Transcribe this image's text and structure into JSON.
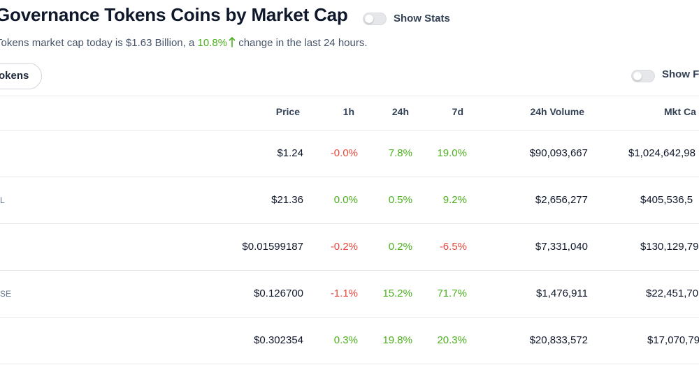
{
  "header": {
    "title": "Governance Tokens Coins by Market Cap",
    "show_stats_label": "Show Stats",
    "summary_prefix": "Tokens market cap today is $1.63 Billion, a ",
    "summary_change": "10.8%",
    "summary_suffix": " change in the last 24 hours."
  },
  "filters": {
    "category_pill": "okens",
    "show_fully_diluted_label": "Show F"
  },
  "colors": {
    "positive": "#4caf1d",
    "negative": "#e5483c"
  },
  "table": {
    "columns": {
      "price": "Price",
      "h1": "1h",
      "h24": "24h",
      "d7": "7d",
      "volume": "24h Volume",
      "mktcap": "Mkt Ca"
    },
    "rows": [
      {
        "symbol": "",
        "price": "$1.24",
        "h1": "-0.0%",
        "h24": "7.8%",
        "d7": "19.0%",
        "volume": "$90,093,667",
        "mktcap": "$1,024,642,98"
      },
      {
        "symbol": "L",
        "price": "$21.36",
        "h1": "0.0%",
        "h24": "0.5%",
        "d7": "9.2%",
        "volume": "$2,656,277",
        "mktcap": "$405,536,5"
      },
      {
        "symbol": "",
        "price": "$0.01599187",
        "h1": "-0.2%",
        "h24": "0.2%",
        "d7": "-6.5%",
        "volume": "$7,331,040",
        "mktcap": "$130,129,79"
      },
      {
        "symbol": "SE",
        "price": "$0.126700",
        "h1": "-1.1%",
        "h24": "15.2%",
        "d7": "71.7%",
        "volume": "$1,476,911",
        "mktcap": "$22,451,70"
      },
      {
        "symbol": "",
        "price": "$0.302354",
        "h1": "0.3%",
        "h24": "19.8%",
        "d7": "20.3%",
        "volume": "$20,833,572",
        "mktcap": "$17,070,79"
      }
    ]
  }
}
